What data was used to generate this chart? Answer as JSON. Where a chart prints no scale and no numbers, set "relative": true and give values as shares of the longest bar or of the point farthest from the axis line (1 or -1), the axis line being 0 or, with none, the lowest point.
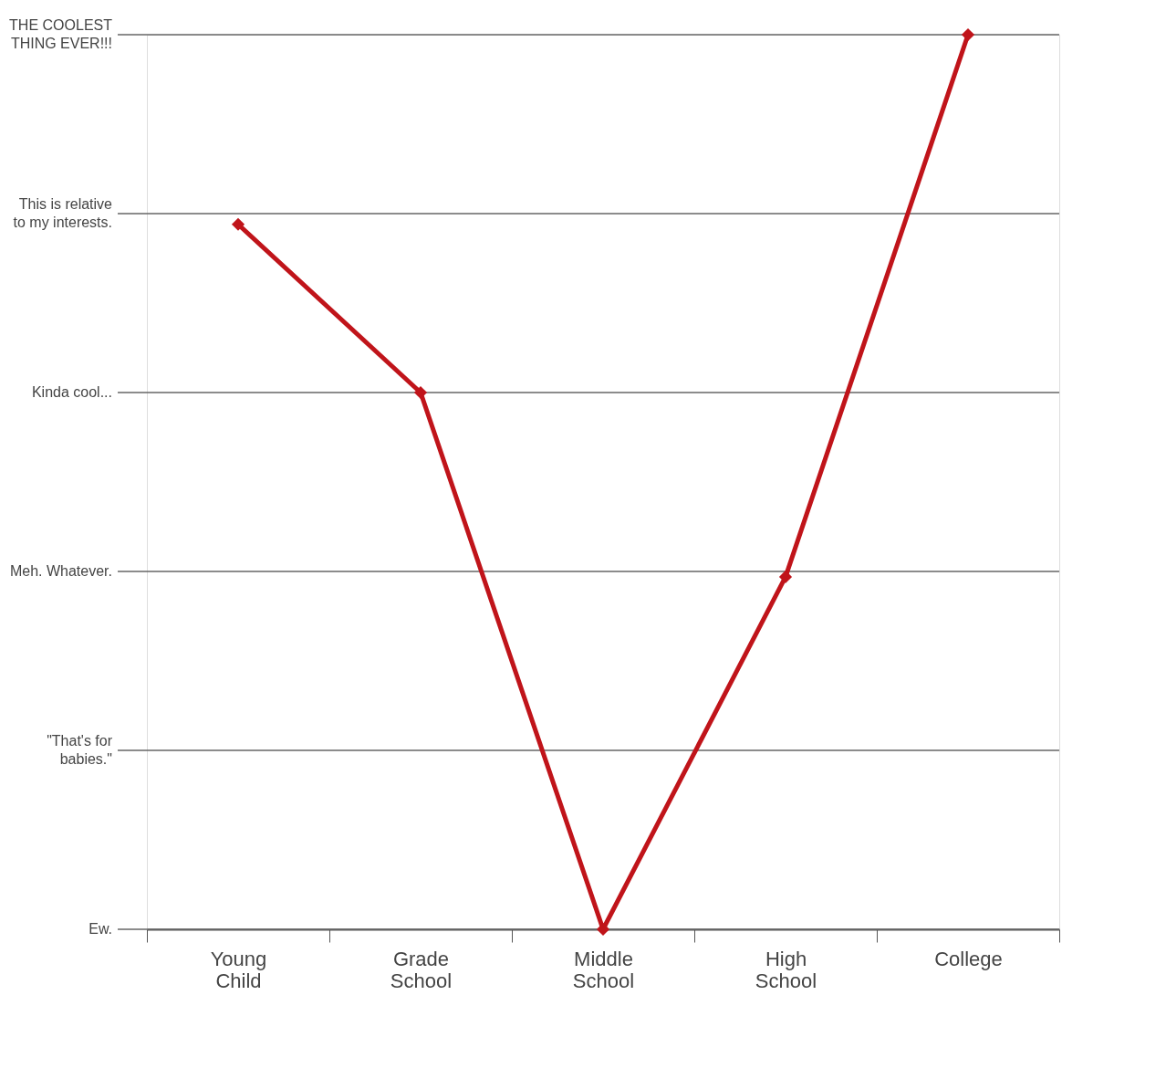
{
  "chart_data": {
    "type": "line",
    "categories": [
      "Young Child",
      "Grade School",
      "Middle School",
      "High School",
      "College"
    ],
    "relative": true,
    "series": [
      {
        "color": "#c0141a",
        "values": [
          0.788,
          0.6,
          0,
          0.394,
          1.0
        ]
      }
    ],
    "ref_lines": [
      {
        "axis": "y",
        "value": 0,
        "label": "Ew."
      },
      {
        "axis": "y",
        "value": 0.2,
        "label": "\"That's for babies.\""
      },
      {
        "axis": "y",
        "value": 0.4,
        "label": "Meh. Whatever."
      },
      {
        "axis": "y",
        "value": 0.6,
        "label": "Kinda cool..."
      },
      {
        "axis": "y",
        "value": 0.8,
        "label": "This is relative to my interests."
      },
      {
        "axis": "y",
        "value": 1.0,
        "label": "THE COOLEST THING EVER!!!"
      }
    ],
    "marker": "diamond",
    "line_style": "solid"
  }
}
